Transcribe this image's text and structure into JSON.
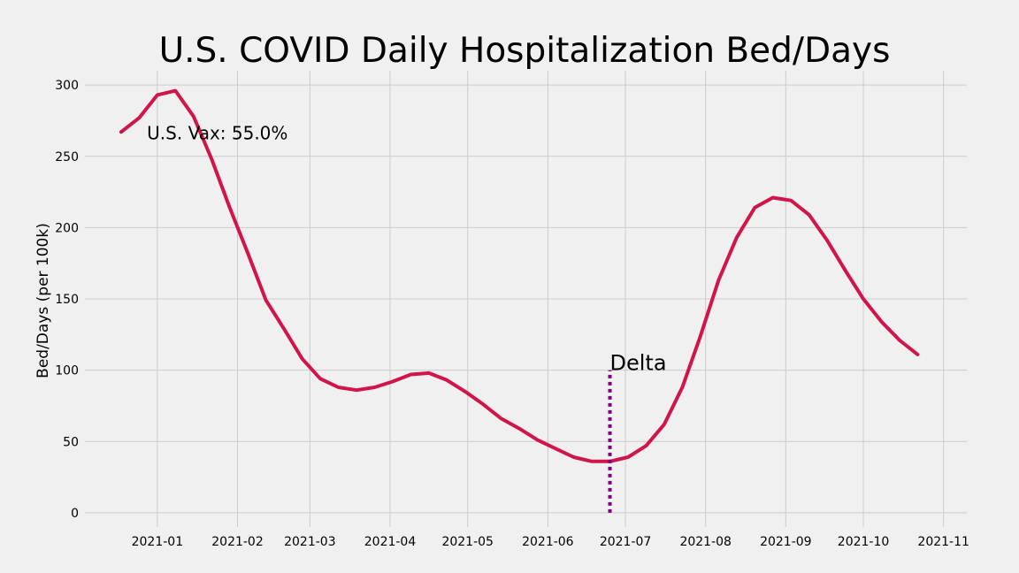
{
  "chart_data": {
    "type": "line",
    "title": "U.S. COVID Daily Hospitalization Bed/Days",
    "xlabel": "",
    "ylabel": "Bed/Days (per 100k)",
    "ylim": [
      -10,
      310
    ],
    "yticks": [
      0,
      50,
      100,
      150,
      200,
      250,
      300
    ],
    "xlim": [
      "2020-12-04",
      "2021-11-10"
    ],
    "xticks": [
      "2021-01",
      "2021-02",
      "2021-03",
      "2021-04",
      "2021-05",
      "2021-06",
      "2021-07",
      "2021-08",
      "2021-09",
      "2021-10",
      "2021-11"
    ],
    "grid": true,
    "line_color": "#d0154a",
    "series": [
      {
        "x": [
          "2020-12-18",
          "2020-12-25",
          "2021-01-01",
          "2021-01-08",
          "2021-01-15",
          "2021-01-22",
          "2021-01-29",
          "2021-02-05",
          "2021-02-12",
          "2021-02-19",
          "2021-02-26",
          "2021-03-05",
          "2021-03-12",
          "2021-03-19",
          "2021-03-26",
          "2021-04-02",
          "2021-04-09",
          "2021-04-16",
          "2021-04-23",
          "2021-04-30",
          "2021-05-07",
          "2021-05-14",
          "2021-05-21",
          "2021-05-28",
          "2021-06-04",
          "2021-06-11",
          "2021-06-18",
          "2021-06-25",
          "2021-07-02",
          "2021-07-09",
          "2021-07-16",
          "2021-07-23",
          "2021-07-30",
          "2021-08-06",
          "2021-08-13",
          "2021-08-20",
          "2021-08-27",
          "2021-09-03",
          "2021-09-10",
          "2021-09-17",
          "2021-09-24",
          "2021-10-01",
          "2021-10-08",
          "2021-10-15",
          "2021-10-22"
        ],
        "values": [
          267,
          277,
          293,
          296,
          278,
          248,
          214,
          182,
          149,
          129,
          108,
          94,
          88,
          86,
          88,
          92,
          97,
          98,
          93,
          85,
          76,
          66,
          59,
          51,
          45,
          39,
          36,
          36,
          39,
          47,
          62,
          88,
          124,
          163,
          193,
          214,
          221,
          219,
          209,
          191,
          170,
          150,
          134,
          121,
          111
        ]
      }
    ],
    "annotations": [
      {
        "text": "U.S. Vax: 55.0%",
        "x": "2020-12-28",
        "y": 262
      },
      {
        "text": "Delta",
        "x": "2021-06-25",
        "y": 100
      }
    ],
    "vline": {
      "x": "2021-06-25",
      "y0": 0,
      "y1": 100,
      "color": "#7d0080",
      "style": "dotted"
    }
  }
}
